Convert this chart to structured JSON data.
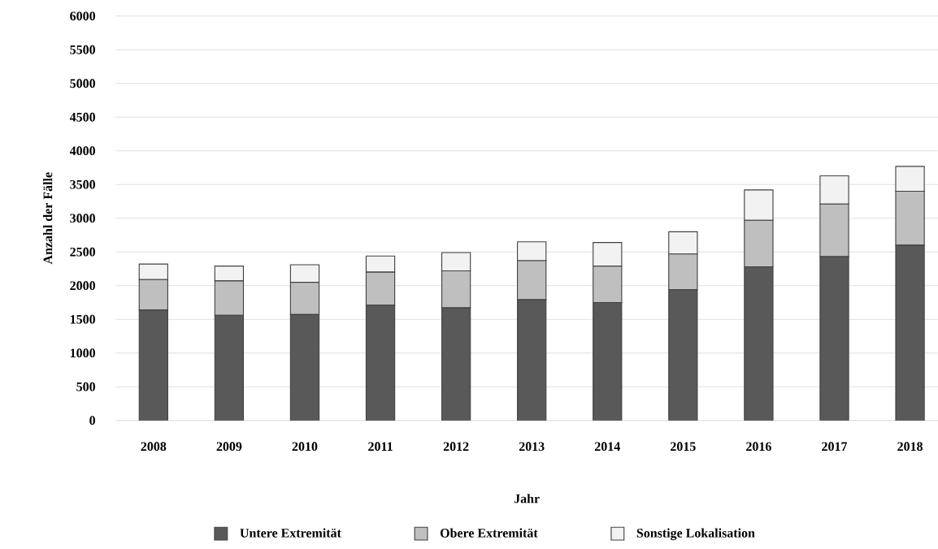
{
  "chart_data": {
    "type": "bar",
    "stacked": true,
    "xlabel": "Jahr",
    "ylabel": "Anzahl der Fälle",
    "categories": [
      "2008",
      "2009",
      "2010",
      "2011",
      "2012",
      "2013",
      "2014",
      "2015",
      "2016",
      "2017",
      "2018"
    ],
    "series": [
      {
        "name": "Untere Extremität",
        "color": "#595959",
        "values": [
          1640,
          1560,
          1570,
          1710,
          1670,
          1790,
          1750,
          1940,
          2280,
          2430,
          2600
        ]
      },
      {
        "name": "Obere Extremität",
        "color": "#bfbfbf",
        "values": [
          450,
          510,
          480,
          490,
          550,
          580,
          540,
          530,
          690,
          780,
          800
        ]
      },
      {
        "name": "Sonstige Lokalisation",
        "color": "#f2f2f2",
        "values": [
          230,
          220,
          260,
          240,
          270,
          280,
          350,
          330,
          450,
          420,
          370
        ]
      }
    ],
    "ylim": [
      0,
      6000
    ],
    "yticks": [
      0,
      500,
      1000,
      1500,
      2000,
      2500,
      3000,
      3500,
      4000,
      4500,
      5000,
      5500,
      6000
    ],
    "grid": "y",
    "legend": "bottom"
  }
}
